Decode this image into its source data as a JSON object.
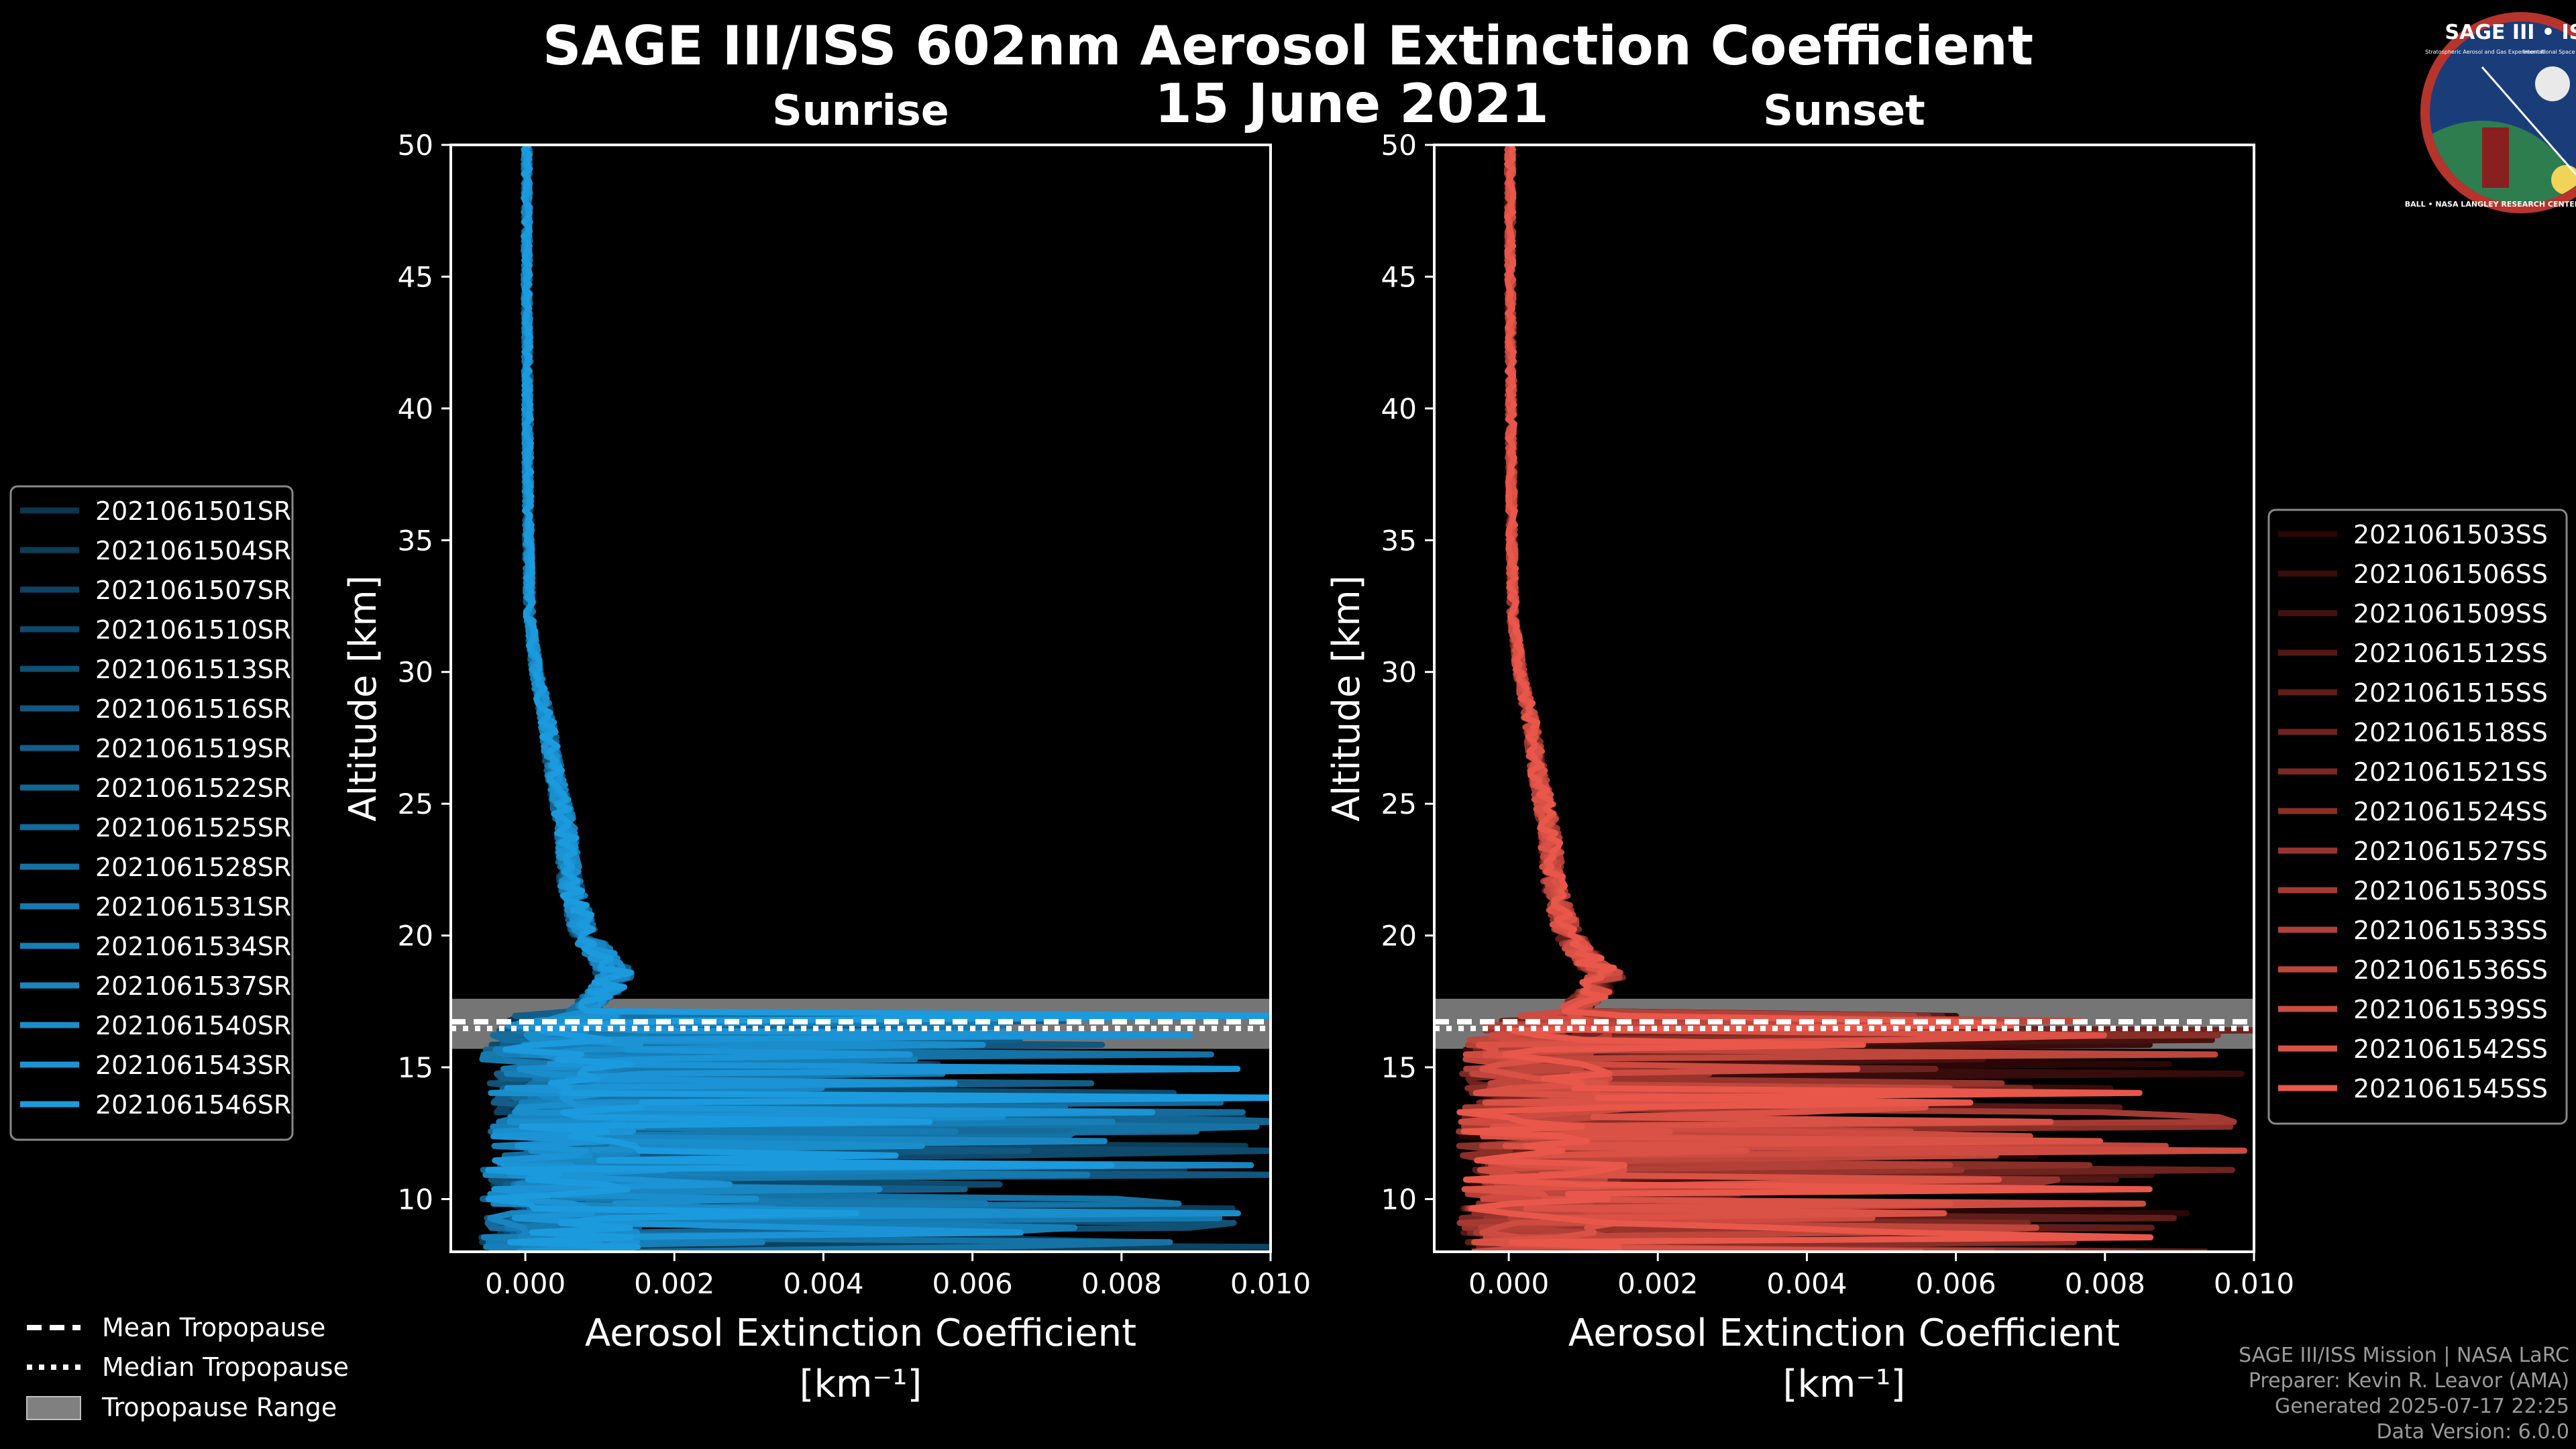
{
  "figure": {
    "title": "SAGE III/ISS 602nm Aerosol Extinction Coefficient",
    "subtitle": "15 June 2021"
  },
  "logo": {
    "title": "SAGE III • ISS",
    "subtitle": "Stratospheric Aerosol and Gas Experiment III",
    "station": "International Space Station",
    "ring": "BALL • NASA LANGLEY RESEARCH CENTER • TAS-I • ESA"
  },
  "tropopause_legend": {
    "mean_label": "Mean Tropopause",
    "median_label": "Median Tropopause",
    "range_label": "Tropopause Range"
  },
  "credits": {
    "mission": "SAGE III/ISS Mission | NASA LaRC",
    "preparer": "Preparer: Kevin R. Leavor (AMA)",
    "generated": "Generated 2025-07-17 22:25",
    "version": "Data Version: 6.0.0"
  },
  "chart_data": [
    {
      "type": "line",
      "panel": "left",
      "title": "Sunrise",
      "xlabel": "Aerosol Extinction Coefficient",
      "xunit": "[km⁻¹]",
      "ylabel": "Altitude [km]",
      "xlim": [
        -0.001,
        0.01
      ],
      "ylim": [
        8,
        50
      ],
      "xticks": [
        0,
        0.002,
        0.004,
        0.006,
        0.008,
        0.01
      ],
      "xtick_labels": [
        "0.000",
        "0.002",
        "0.004",
        "0.006",
        "0.008",
        "0.010"
      ],
      "yticks": [
        10,
        15,
        20,
        25,
        30,
        35,
        40,
        45,
        50
      ],
      "tropopause": {
        "mean": 16.6,
        "median": 16.6,
        "range": [
          15.7,
          17.6
        ]
      },
      "colors": {
        "start": "#0b3650",
        "end": "#1c9ade"
      },
      "series": [
        {
          "name": "2021061501SR"
        },
        {
          "name": "2021061504SR"
        },
        {
          "name": "2021061507SR"
        },
        {
          "name": "2021061510SR"
        },
        {
          "name": "2021061513SR"
        },
        {
          "name": "2021061516SR"
        },
        {
          "name": "2021061519SR"
        },
        {
          "name": "2021061522SR"
        },
        {
          "name": "2021061525SR"
        },
        {
          "name": "2021061528SR"
        },
        {
          "name": "2021061531SR"
        },
        {
          "name": "2021061534SR"
        },
        {
          "name": "2021061537SR"
        },
        {
          "name": "2021061540SR"
        },
        {
          "name": "2021061543SR"
        },
        {
          "name": "2021061546SR"
        }
      ],
      "profile_mean": {
        "altitude": [
          50,
          45,
          40,
          35,
          32,
          30,
          28,
          26,
          24,
          22,
          21,
          20,
          19,
          18.5,
          18,
          17.5,
          17,
          16.5,
          16,
          15.5,
          15,
          14,
          13,
          12,
          11,
          10,
          9,
          8
        ],
        "extinction": [
          2e-05,
          2e-05,
          3e-05,
          4e-05,
          6e-05,
          0.00015,
          0.0003,
          0.0004,
          0.00055,
          0.0006,
          0.0007,
          0.0008,
          0.0011,
          0.0012,
          0.0011,
          0.0009,
          0.0007,
          0.0005,
          0.0004,
          0.0003,
          0.0003,
          0.0004,
          0.0004,
          0.0003,
          0.0003,
          0.0003,
          0.0003,
          0.0002
        ]
      }
    },
    {
      "type": "line",
      "panel": "right",
      "title": "Sunset",
      "xlabel": "Aerosol Extinction Coefficient",
      "xunit": "[km⁻¹]",
      "ylabel": "Altitude [km]",
      "xlim": [
        -0.001,
        0.01
      ],
      "ylim": [
        8,
        50
      ],
      "xticks": [
        0,
        0.002,
        0.004,
        0.006,
        0.008,
        0.01
      ],
      "xtick_labels": [
        "0.000",
        "0.002",
        "0.004",
        "0.006",
        "0.008",
        "0.010"
      ],
      "yticks": [
        10,
        15,
        20,
        25,
        30,
        35,
        40,
        45,
        50
      ],
      "tropopause": {
        "mean": 16.6,
        "median": 16.6,
        "range": [
          15.7,
          17.6
        ]
      },
      "colors": {
        "start": "#2a0606",
        "end": "#e8574a"
      },
      "series": [
        {
          "name": "2021061503SS"
        },
        {
          "name": "2021061506SS"
        },
        {
          "name": "2021061509SS"
        },
        {
          "name": "2021061512SS"
        },
        {
          "name": "2021061515SS"
        },
        {
          "name": "2021061518SS"
        },
        {
          "name": "2021061521SS"
        },
        {
          "name": "2021061524SS"
        },
        {
          "name": "2021061527SS"
        },
        {
          "name": "2021061530SS"
        },
        {
          "name": "2021061533SS"
        },
        {
          "name": "2021061536SS"
        },
        {
          "name": "2021061539SS"
        },
        {
          "name": "2021061542SS"
        },
        {
          "name": "2021061545SS"
        }
      ],
      "profile_mean": {
        "altitude": [
          50,
          45,
          40,
          35,
          32,
          30,
          28,
          26,
          24,
          22,
          21,
          20,
          19,
          18.5,
          18,
          17.5,
          17,
          16.5,
          16,
          15.5,
          15,
          14,
          13,
          12,
          11,
          10,
          9,
          8
        ],
        "extinction": [
          2e-05,
          2e-05,
          3e-05,
          4e-05,
          6e-05,
          0.00015,
          0.0003,
          0.0004,
          0.00055,
          0.0006,
          0.0007,
          0.0008,
          0.0011,
          0.0013,
          0.0012,
          0.001,
          0.0008,
          0.0005,
          0.0003,
          0.0002,
          0.0002,
          0.0002,
          0.0002,
          0.0002,
          0.0003,
          0.0002,
          0.0002,
          0.0002
        ]
      }
    }
  ]
}
